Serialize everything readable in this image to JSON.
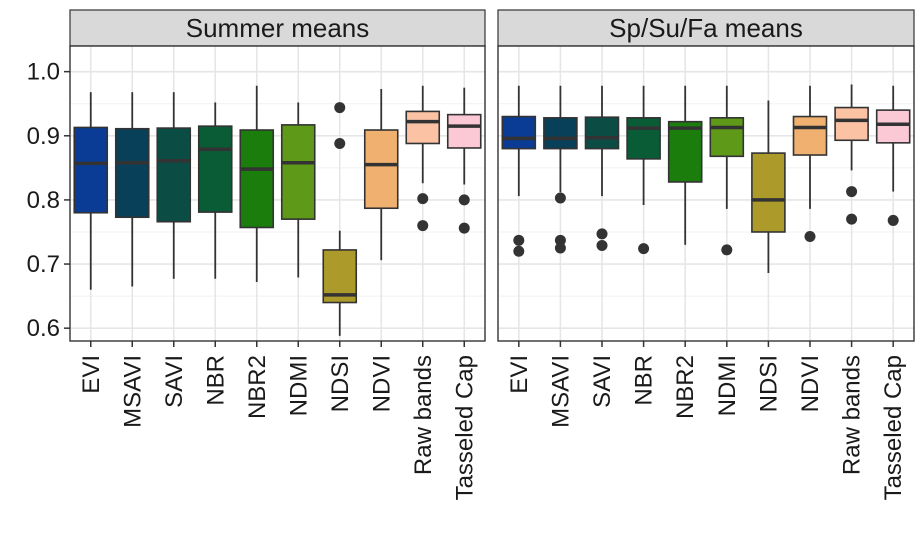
{
  "chart_data": {
    "type": "boxplot",
    "ylim": [
      0.58,
      1.04
    ],
    "yticks": [
      0.6,
      0.7,
      0.8,
      0.9,
      1.0
    ],
    "ytick_labels": [
      "0.6",
      "0.7",
      "0.8",
      "0.9",
      "1.0"
    ],
    "grid": true,
    "categories": [
      "EVI",
      "MSAVI",
      "SAVI",
      "NBR",
      "NBR2",
      "NDMI",
      "NDSI",
      "NDVI",
      "Raw bands",
      "Tasseled Cap"
    ],
    "colors": {
      "EVI": "#0a3c96",
      "MSAVI": "#08405a",
      "SAVI": "#0b4d44",
      "NBR": "#0a5c36",
      "NBR2": "#1a7d0c",
      "NDMI": "#5e9a18",
      "NDSI": "#ac9a2a",
      "NDVI": "#f0b070",
      "Raw bands": "#fcc2a4",
      "Tasseled Cap": "#fbc8d6"
    },
    "panels": [
      {
        "title": "Summer means",
        "boxes": [
          {
            "category": "EVI",
            "lower_whisker": 0.66,
            "q1": 0.78,
            "median": 0.857,
            "q3": 0.913,
            "upper_whisker": 0.968,
            "outliers": []
          },
          {
            "category": "MSAVI",
            "lower_whisker": 0.665,
            "q1": 0.773,
            "median": 0.858,
            "q3": 0.911,
            "upper_whisker": 0.968,
            "outliers": []
          },
          {
            "category": "SAVI",
            "lower_whisker": 0.677,
            "q1": 0.766,
            "median": 0.861,
            "q3": 0.912,
            "upper_whisker": 0.968,
            "outliers": []
          },
          {
            "category": "NBR",
            "lower_whisker": 0.677,
            "q1": 0.781,
            "median": 0.879,
            "q3": 0.915,
            "upper_whisker": 0.952,
            "outliers": []
          },
          {
            "category": "NBR2",
            "lower_whisker": 0.672,
            "q1": 0.757,
            "median": 0.848,
            "q3": 0.909,
            "upper_whisker": 0.978,
            "outliers": []
          },
          {
            "category": "NDMI",
            "lower_whisker": 0.679,
            "q1": 0.77,
            "median": 0.858,
            "q3": 0.917,
            "upper_whisker": 0.952,
            "outliers": []
          },
          {
            "category": "NDSI",
            "lower_whisker": 0.588,
            "q1": 0.64,
            "median": 0.652,
            "q3": 0.722,
            "upper_whisker": 0.752,
            "outliers": [
              0.944,
              0.888
            ]
          },
          {
            "category": "NDVI",
            "lower_whisker": 0.706,
            "q1": 0.787,
            "median": 0.855,
            "q3": 0.909,
            "upper_whisker": 0.973,
            "outliers": []
          },
          {
            "category": "Raw bands",
            "lower_whisker": 0.826,
            "q1": 0.888,
            "median": 0.922,
            "q3": 0.938,
            "upper_whisker": 0.978,
            "outliers": [
              0.802,
              0.76
            ]
          },
          {
            "category": "Tasseled Cap",
            "lower_whisker": 0.824,
            "q1": 0.881,
            "median": 0.915,
            "q3": 0.933,
            "upper_whisker": 0.975,
            "outliers": [
              0.8,
              0.756
            ]
          }
        ]
      },
      {
        "title": "Sp/Su/Fa means",
        "boxes": [
          {
            "category": "EVI",
            "lower_whisker": 0.806,
            "q1": 0.88,
            "median": 0.896,
            "q3": 0.93,
            "upper_whisker": 0.978,
            "outliers": [
              0.737,
              0.72
            ]
          },
          {
            "category": "MSAVI",
            "lower_whisker": 0.812,
            "q1": 0.88,
            "median": 0.896,
            "q3": 0.928,
            "upper_whisker": 0.978,
            "outliers": [
              0.803,
              0.737,
              0.725
            ]
          },
          {
            "category": "SAVI",
            "lower_whisker": 0.806,
            "q1": 0.88,
            "median": 0.897,
            "q3": 0.929,
            "upper_whisker": 0.978,
            "outliers": [
              0.747,
              0.729
            ]
          },
          {
            "category": "NBR",
            "lower_whisker": 0.792,
            "q1": 0.864,
            "median": 0.912,
            "q3": 0.928,
            "upper_whisker": 0.978,
            "outliers": [
              0.724
            ]
          },
          {
            "category": "NBR2",
            "lower_whisker": 0.73,
            "q1": 0.828,
            "median": 0.912,
            "q3": 0.922,
            "upper_whisker": 0.978,
            "outliers": []
          },
          {
            "category": "NDMI",
            "lower_whisker": 0.786,
            "q1": 0.868,
            "median": 0.913,
            "q3": 0.928,
            "upper_whisker": 0.978,
            "outliers": [
              0.722
            ]
          },
          {
            "category": "NDSI",
            "lower_whisker": 0.686,
            "q1": 0.75,
            "median": 0.8,
            "q3": 0.873,
            "upper_whisker": 0.955,
            "outliers": []
          },
          {
            "category": "NDVI",
            "lower_whisker": 0.786,
            "q1": 0.87,
            "median": 0.913,
            "q3": 0.93,
            "upper_whisker": 0.978,
            "outliers": [
              0.743
            ]
          },
          {
            "category": "Raw bands",
            "lower_whisker": 0.846,
            "q1": 0.893,
            "median": 0.924,
            "q3": 0.944,
            "upper_whisker": 0.98,
            "outliers": [
              0.813,
              0.77
            ]
          },
          {
            "category": "Tasseled Cap",
            "lower_whisker": 0.813,
            "q1": 0.889,
            "median": 0.918,
            "q3": 0.94,
            "upper_whisker": 0.978,
            "outliers": [
              0.768
            ]
          }
        ]
      }
    ]
  }
}
